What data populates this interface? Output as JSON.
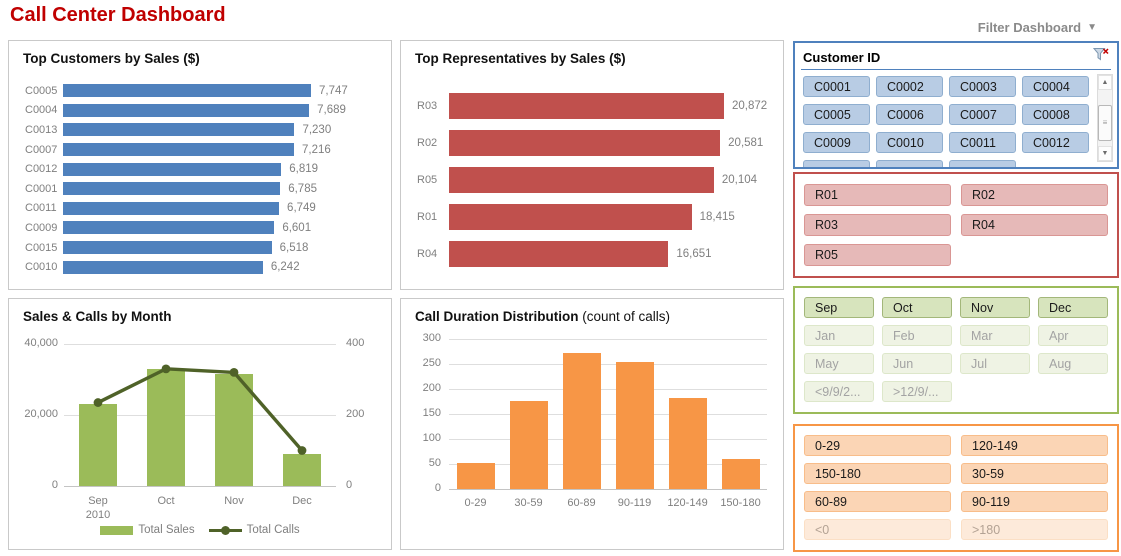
{
  "header": {
    "title": "Call Center Dashboard",
    "filter_label": "Filter Dashboard",
    "filter_arrow": "▼"
  },
  "colors": {
    "title_red": "#c00000",
    "customer_blue": "#4f81bd",
    "rep_red": "#c0504d",
    "sales_green": "#9bbb59",
    "calls_line_green": "#4f6228",
    "duration_orange": "#f79646",
    "axis_gray": "#7f7f7f"
  },
  "chart_data": [
    {
      "id": "top_customers",
      "type": "bar",
      "orientation": "horizontal",
      "title": "Top Customers by Sales ($)",
      "categories": [
        "C0005",
        "C0004",
        "C0013",
        "C0007",
        "C0012",
        "C0001",
        "C0011",
        "C0009",
        "C0015",
        "C0010"
      ],
      "values": [
        7747,
        7689,
        7230,
        7216,
        6819,
        6785,
        6749,
        6601,
        6518,
        6242
      ],
      "labels": [
        "7,747",
        "7,689",
        "7,230",
        "7,216",
        "6,819",
        "6,785",
        "6,749",
        "6,601",
        "6,518",
        "6,242"
      ],
      "color": "#4f81bd",
      "xlim": [
        0,
        8300
      ],
      "grid": false
    },
    {
      "id": "top_representatives",
      "type": "bar",
      "orientation": "horizontal",
      "title": "Top Representatives by Sales ($)",
      "categories": [
        "R03",
        "R02",
        "R05",
        "R01",
        "R04"
      ],
      "values": [
        20872,
        20581,
        20104,
        18415,
        16651
      ],
      "labels": [
        "20,872",
        "20,581",
        "20,104",
        "18,415",
        "16,651"
      ],
      "color": "#c0504d",
      "xlim": [
        0,
        22500
      ],
      "grid": false
    },
    {
      "id": "sales_calls_by_month",
      "type": "combo",
      "title": "Sales & Calls by Month",
      "categories": [
        "Sep 2010",
        "Oct",
        "Nov",
        "Dec"
      ],
      "x_labels": [
        [
          "Sep",
          "2010"
        ],
        [
          "Oct"
        ],
        [
          "Nov"
        ],
        [
          "Dec"
        ]
      ],
      "series": [
        {
          "name": "Total Sales",
          "type": "bar",
          "axis": "left",
          "color": "#9bbb59",
          "values": [
            23000,
            33000,
            31500,
            9000
          ]
        },
        {
          "name": "Total Calls",
          "type": "line",
          "axis": "right",
          "color": "#4f6228",
          "values": [
            235,
            330,
            320,
            100
          ]
        }
      ],
      "left_axis": {
        "max": 40000,
        "ticks": [
          "40,000",
          "20,000",
          "0"
        ]
      },
      "right_axis": {
        "max": 400,
        "ticks": [
          "400",
          "200",
          "0"
        ]
      },
      "grid": true,
      "legend_position": "bottom"
    },
    {
      "id": "call_duration_distribution",
      "type": "bar",
      "orientation": "vertical",
      "title_bold": "Call Duration Distribution",
      "title_note": "(count of calls)",
      "categories": [
        "0-29",
        "30-59",
        "60-89",
        "90-119",
        "120-149",
        "150-180"
      ],
      "values": [
        53,
        177,
        272,
        255,
        182,
        60
      ],
      "color": "#f79646",
      "ylim": [
        0,
        300
      ],
      "yticks": [
        "300",
        "250",
        "200",
        "150",
        "100",
        "50",
        "0"
      ],
      "grid": true
    }
  ],
  "slicers": {
    "customer": {
      "title": "Customer ID",
      "items": [
        "C0001",
        "C0002",
        "C0003",
        "C0004",
        "C0005",
        "C0006",
        "C0007",
        "C0008",
        "C0009",
        "C0010",
        "C0011",
        "C0012"
      ],
      "partial_button_count": 3,
      "scrollbar": {
        "up_arrow": "▲",
        "down_arrow": "▼",
        "grip": "≡"
      }
    },
    "representatives": {
      "items": [
        "R01",
        "R02",
        "R03",
        "R04",
        "R05"
      ]
    },
    "months": {
      "items": [
        {
          "label": "Sep",
          "active": true
        },
        {
          "label": "Oct",
          "active": true
        },
        {
          "label": "Nov",
          "active": true
        },
        {
          "label": "Dec",
          "active": true
        },
        {
          "label": "Jan",
          "active": false
        },
        {
          "label": "Feb",
          "active": false
        },
        {
          "label": "Mar",
          "active": false
        },
        {
          "label": "Apr",
          "active": false
        },
        {
          "label": "May",
          "active": false
        },
        {
          "label": "Jun",
          "active": false
        },
        {
          "label": "Jul",
          "active": false
        },
        {
          "label": "Aug",
          "active": false
        },
        {
          "label": "<9/9/2...",
          "active": false
        },
        {
          "label": ">12/9/...",
          "active": false
        }
      ]
    },
    "duration": {
      "items": [
        {
          "label": "0-29",
          "active": true
        },
        {
          "label": "120-149",
          "active": true
        },
        {
          "label": "150-180",
          "active": true
        },
        {
          "label": "30-59",
          "active": true
        },
        {
          "label": "60-89",
          "active": true
        },
        {
          "label": "90-119",
          "active": true
        },
        {
          "label": "<0",
          "active": false
        },
        {
          "label": ">180",
          "active": false
        }
      ]
    }
  }
}
